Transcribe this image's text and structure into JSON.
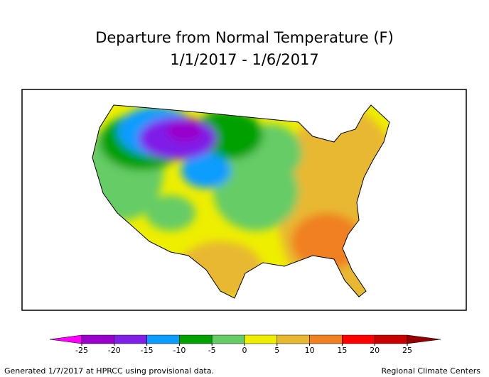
{
  "header": {
    "title": "Departure from Normal Temperature (F)",
    "subtitle": "1/1/2017 - 1/6/2017"
  },
  "legend": {
    "ticks": [
      -25,
      -20,
      -15,
      -10,
      -5,
      0,
      5,
      10,
      15,
      20,
      25
    ],
    "colors": [
      "#ff00ff",
      "#9a00cc",
      "#7f1fe8",
      "#0a9cff",
      "#00a000",
      "#66cc66",
      "#eeee00",
      "#e8b830",
      "#f08020",
      "#ff0000",
      "#c80000",
      "#960000"
    ]
  },
  "footer": {
    "left": "Generated 1/7/2017 at HPRCC using provisional data.",
    "right": "Regional Climate Centers"
  }
}
